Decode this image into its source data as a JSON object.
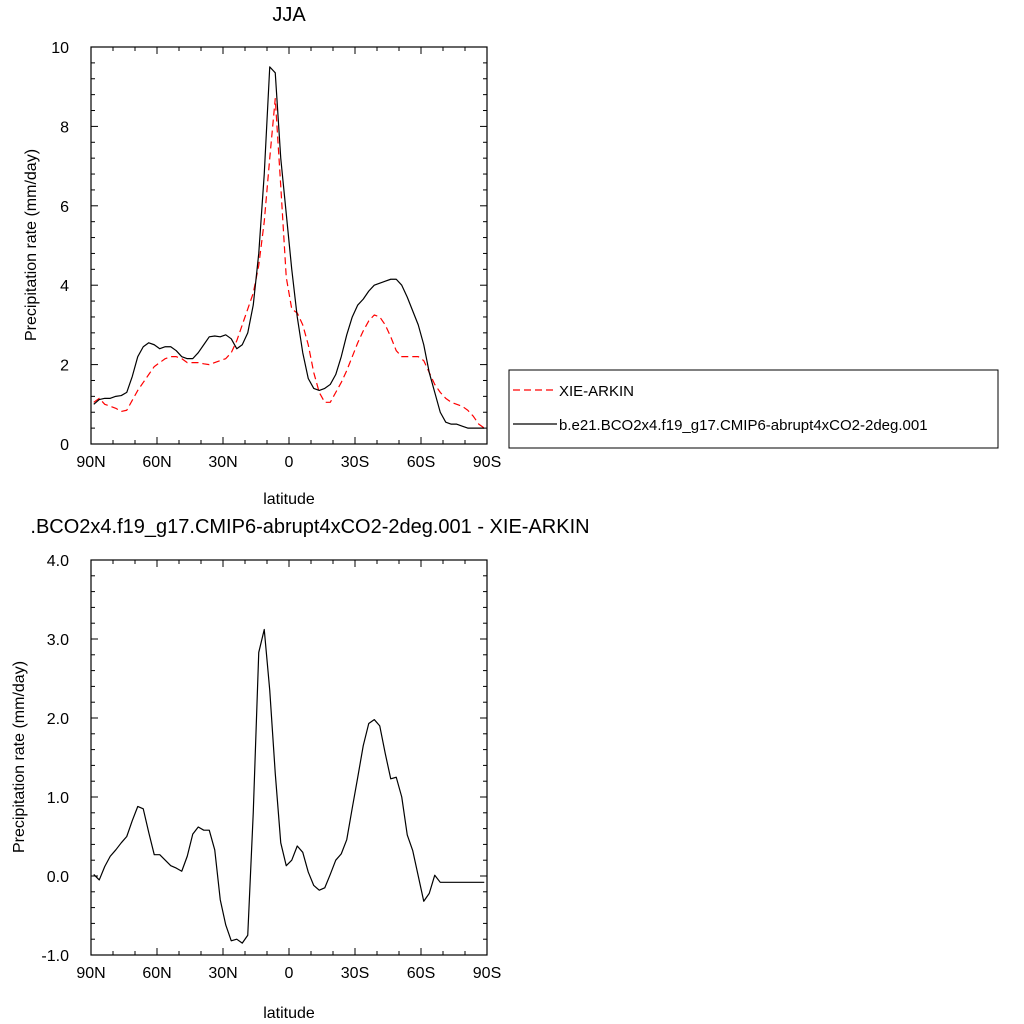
{
  "chart_data": [
    {
      "type": "line",
      "title": "JJA",
      "xlabel": "latitude",
      "ylabel": "Precipitation rate (mm/day)",
      "xlim": [
        90,
        -90
      ],
      "ylim": [
        0,
        10
      ],
      "x_ticks": [
        90,
        60,
        30,
        0,
        -30,
        -60,
        -90
      ],
      "x_tick_labels": [
        "90N",
        "60N",
        "30N",
        "0",
        "30S",
        "60S",
        "90S"
      ],
      "y_ticks": [
        0,
        2,
        4,
        6,
        8,
        10
      ],
      "y_tick_labels": [
        "0",
        "2",
        "4",
        "6",
        "8",
        "10"
      ],
      "legend_position": "right",
      "series": [
        {
          "name": "XIE-ARKIN",
          "color": "#ff0000",
          "dash": true,
          "x": [
            88.75,
            86.25,
            83.75,
            81.25,
            78.75,
            76.25,
            73.75,
            71.25,
            68.75,
            66.25,
            63.75,
            61.25,
            58.75,
            56.25,
            53.75,
            51.25,
            48.75,
            46.25,
            43.75,
            41.25,
            38.75,
            36.25,
            33.75,
            31.25,
            28.75,
            26.25,
            23.75,
            21.25,
            18.75,
            16.25,
            13.75,
            11.25,
            8.75,
            6.25,
            3.75,
            1.25,
            -1.25,
            -3.75,
            -6.25,
            -8.75,
            -11.25,
            -13.75,
            -16.25,
            -18.75,
            -21.25,
            -23.75,
            -26.25,
            -28.75,
            -31.25,
            -33.75,
            -36.25,
            -38.75,
            -41.25,
            -43.75,
            -46.25,
            -48.75,
            -51.25,
            -53.75,
            -56.25,
            -58.75,
            -61.25,
            -63.75,
            -66.25,
            -68.75,
            -71.25,
            -73.75,
            -76.25,
            -78.75,
            -81.25,
            -83.75,
            -86.25,
            -88.75
          ],
          "values": [
            1.05,
            1.15,
            1.0,
            0.95,
            0.9,
            0.82,
            0.85,
            1.1,
            1.35,
            1.55,
            1.75,
            1.95,
            2.05,
            2.15,
            2.2,
            2.2,
            2.15,
            2.05,
            2.05,
            2.05,
            2.02,
            2.0,
            2.05,
            2.1,
            2.15,
            2.3,
            2.6,
            3.0,
            3.4,
            3.8,
            4.5,
            5.6,
            7.2,
            8.7,
            6.5,
            4.2,
            3.4,
            3.3,
            3.0,
            2.5,
            1.8,
            1.3,
            1.05,
            1.05,
            1.3,
            1.55,
            1.85,
            2.2,
            2.55,
            2.85,
            3.1,
            3.25,
            3.2,
            3.0,
            2.7,
            2.35,
            2.2,
            2.2,
            2.2,
            2.2,
            2.1,
            1.8,
            1.5,
            1.3,
            1.15,
            1.05,
            1.0,
            0.95,
            0.85,
            0.7,
            0.5,
            0.4
          ]
        },
        {
          "name": "b.e21.BCO2x4.f19_g17.CMIP6-abrupt4xCO2-2deg.001",
          "color": "#000000",
          "dash": false,
          "x": [
            88.75,
            86.25,
            83.75,
            81.25,
            78.75,
            76.25,
            73.75,
            71.25,
            68.75,
            66.25,
            63.75,
            61.25,
            58.75,
            56.25,
            53.75,
            51.25,
            48.75,
            46.25,
            43.75,
            41.25,
            38.75,
            36.25,
            33.75,
            31.25,
            28.75,
            26.25,
            23.75,
            21.25,
            18.75,
            16.25,
            13.75,
            11.25,
            8.75,
            6.25,
            3.75,
            1.25,
            -1.25,
            -3.75,
            -6.25,
            -8.75,
            -11.25,
            -13.75,
            -16.25,
            -18.75,
            -21.25,
            -23.75,
            -26.25,
            -28.75,
            -31.25,
            -33.75,
            -36.25,
            -38.75,
            -41.25,
            -43.75,
            -46.25,
            -48.75,
            -51.25,
            -53.75,
            -56.25,
            -58.75,
            -61.25,
            -63.75,
            -66.25,
            -68.75,
            -71.25,
            -73.75,
            -76.25,
            -78.75,
            -81.25,
            -83.75,
            -86.25,
            -88.75
          ],
          "values": [
            1.0,
            1.12,
            1.15,
            1.15,
            1.2,
            1.22,
            1.3,
            1.7,
            2.2,
            2.45,
            2.55,
            2.5,
            2.4,
            2.45,
            2.45,
            2.35,
            2.2,
            2.15,
            2.15,
            2.3,
            2.5,
            2.7,
            2.72,
            2.7,
            2.75,
            2.65,
            2.4,
            2.5,
            2.8,
            3.5,
            4.8,
            6.8,
            9.5,
            9.35,
            7.2,
            5.8,
            4.4,
            3.2,
            2.3,
            1.65,
            1.4,
            1.35,
            1.4,
            1.5,
            1.75,
            2.2,
            2.75,
            3.2,
            3.5,
            3.65,
            3.85,
            4.0,
            4.05,
            4.1,
            4.15,
            4.15,
            4.0,
            3.7,
            3.35,
            3.0,
            2.5,
            1.8,
            1.3,
            0.8,
            0.55,
            0.5,
            0.5,
            0.45,
            0.4,
            0.4,
            0.4,
            0.4
          ]
        }
      ]
    },
    {
      "type": "line",
      "title": ".BCO2x4.f19_g17.CMIP6-abrupt4xCO2-2deg.001 - XIE-ARKIN",
      "xlabel": "latitude",
      "ylabel": "Precipitation rate (mm/day)",
      "xlim": [
        90,
        -90
      ],
      "ylim": [
        -1.0,
        4.0
      ],
      "x_ticks": [
        90,
        60,
        30,
        0,
        -30,
        -60,
        -90
      ],
      "x_tick_labels": [
        "90N",
        "60N",
        "30N",
        "0",
        "30S",
        "60S",
        "90S"
      ],
      "y_ticks": [
        -1,
        0,
        1,
        2,
        3,
        4
      ],
      "y_tick_labels": [
        "-1.0",
        "0.0",
        "1.0",
        "2.0",
        "3.0",
        "4.0"
      ],
      "series": [
        {
          "color": "#000000",
          "dash": false,
          "x": [
            88.75,
            86.25,
            83.75,
            81.25,
            78.75,
            76.25,
            73.75,
            71.25,
            68.75,
            66.25,
            63.75,
            61.25,
            58.75,
            56.25,
            53.75,
            51.25,
            48.75,
            46.25,
            43.75,
            41.25,
            38.75,
            36.25,
            33.75,
            31.25,
            28.75,
            26.25,
            23.75,
            21.25,
            18.75,
            16.25,
            13.75,
            11.25,
            8.75,
            6.25,
            3.75,
            1.25,
            -1.25,
            -3.75,
            -6.25,
            -8.75,
            -11.25,
            -13.75,
            -16.25,
            -18.75,
            -21.25,
            -23.75,
            -26.25,
            -28.75,
            -31.25,
            -33.75,
            -36.25,
            -38.75,
            -41.25,
            -43.75,
            -46.25,
            -48.75,
            -51.25,
            -53.75,
            -56.25,
            -58.75,
            -61.25,
            -63.75,
            -66.25,
            -68.75,
            -71.25,
            -73.75,
            -76.25,
            -78.75,
            -81.25,
            -83.75,
            -86.25,
            -88.75
          ],
          "values": [
            0.02,
            -0.05,
            0.12,
            0.25,
            0.33,
            0.42,
            0.5,
            0.7,
            0.88,
            0.85,
            0.55,
            0.27,
            0.27,
            0.2,
            0.13,
            0.1,
            0.06,
            0.25,
            0.53,
            0.62,
            0.58,
            0.58,
            0.33,
            -0.3,
            -0.62,
            -0.82,
            -0.8,
            -0.85,
            -0.75,
            0.8,
            2.83,
            3.12,
            2.35,
            1.3,
            0.42,
            0.13,
            0.2,
            0.38,
            0.3,
            0.05,
            -0.12,
            -0.18,
            -0.15,
            0.02,
            0.2,
            0.28,
            0.46,
            0.86,
            1.25,
            1.65,
            1.93,
            1.98,
            1.9,
            1.55,
            1.23,
            1.25,
            1.0,
            0.52,
            0.32,
            0.0,
            -0.32,
            -0.22,
            0.01,
            -0.08,
            -0.08,
            -0.08,
            -0.08,
            -0.08,
            -0.08,
            -0.08,
            -0.08,
            -0.08
          ]
        }
      ]
    }
  ]
}
